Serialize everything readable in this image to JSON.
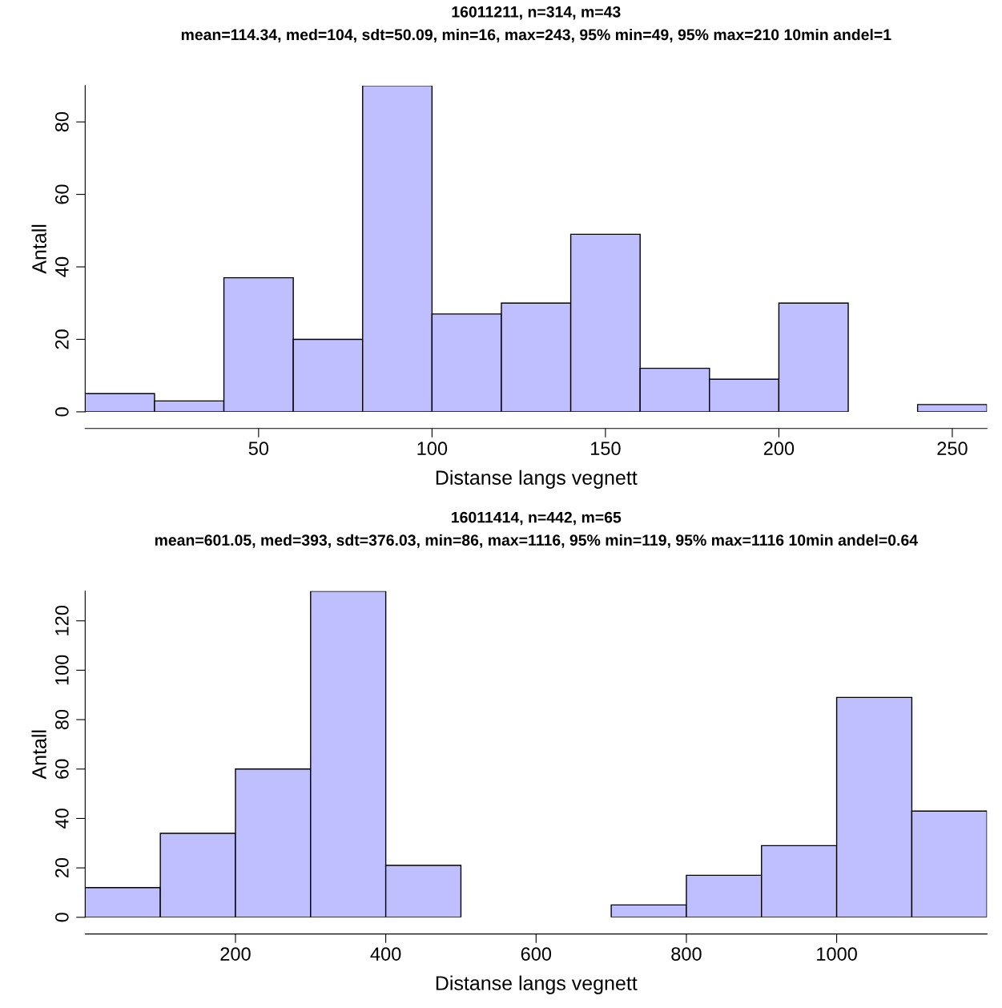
{
  "chart_data": [
    {
      "type": "histogram",
      "title": "16011211, n=314, m=43",
      "subtitle": "mean=114.34, med=104, sdt=50.09, min=16, max=243, 95% min=49, 95% max=210 10min andel=1",
      "xlabel": "Distanse langs vegnett",
      "ylabel": "Antall",
      "color": "#bfbfff",
      "bins": [
        0,
        20,
        40,
        60,
        80,
        100,
        120,
        140,
        160,
        180,
        200,
        220,
        240,
        260
      ],
      "values": [
        5,
        3,
        37,
        20,
        90,
        27,
        30,
        49,
        12,
        9,
        30,
        0,
        2
      ],
      "xlim": [
        0,
        260
      ],
      "xticks": [
        50,
        100,
        150,
        200,
        250
      ],
      "ylim": [
        0,
        90
      ],
      "yticks": [
        0,
        20,
        40,
        60,
        80
      ],
      "grid": false,
      "legend": false
    },
    {
      "type": "histogram",
      "title": "16011414, n=442, m=65",
      "subtitle": "mean=601.05, med=393, sdt=376.03, min=86, max=1116, 95% min=119, 95% max=1116 10min andel=0.64",
      "xlabel": "Distanse langs vegnett",
      "ylabel": "Antall",
      "color": "#bfbfff",
      "bins": [
        0,
        100,
        200,
        300,
        400,
        500,
        600,
        700,
        800,
        900,
        1000,
        1100,
        1200
      ],
      "values": [
        12,
        34,
        60,
        132,
        21,
        0,
        0,
        5,
        17,
        29,
        89,
        43
      ],
      "xlim": [
        0,
        1200
      ],
      "xticks": [
        200,
        400,
        600,
        800,
        1000
      ],
      "ylim": [
        0,
        132
      ],
      "yticks": [
        0,
        20,
        40,
        60,
        80,
        100,
        120
      ],
      "grid": false,
      "legend": false
    }
  ]
}
